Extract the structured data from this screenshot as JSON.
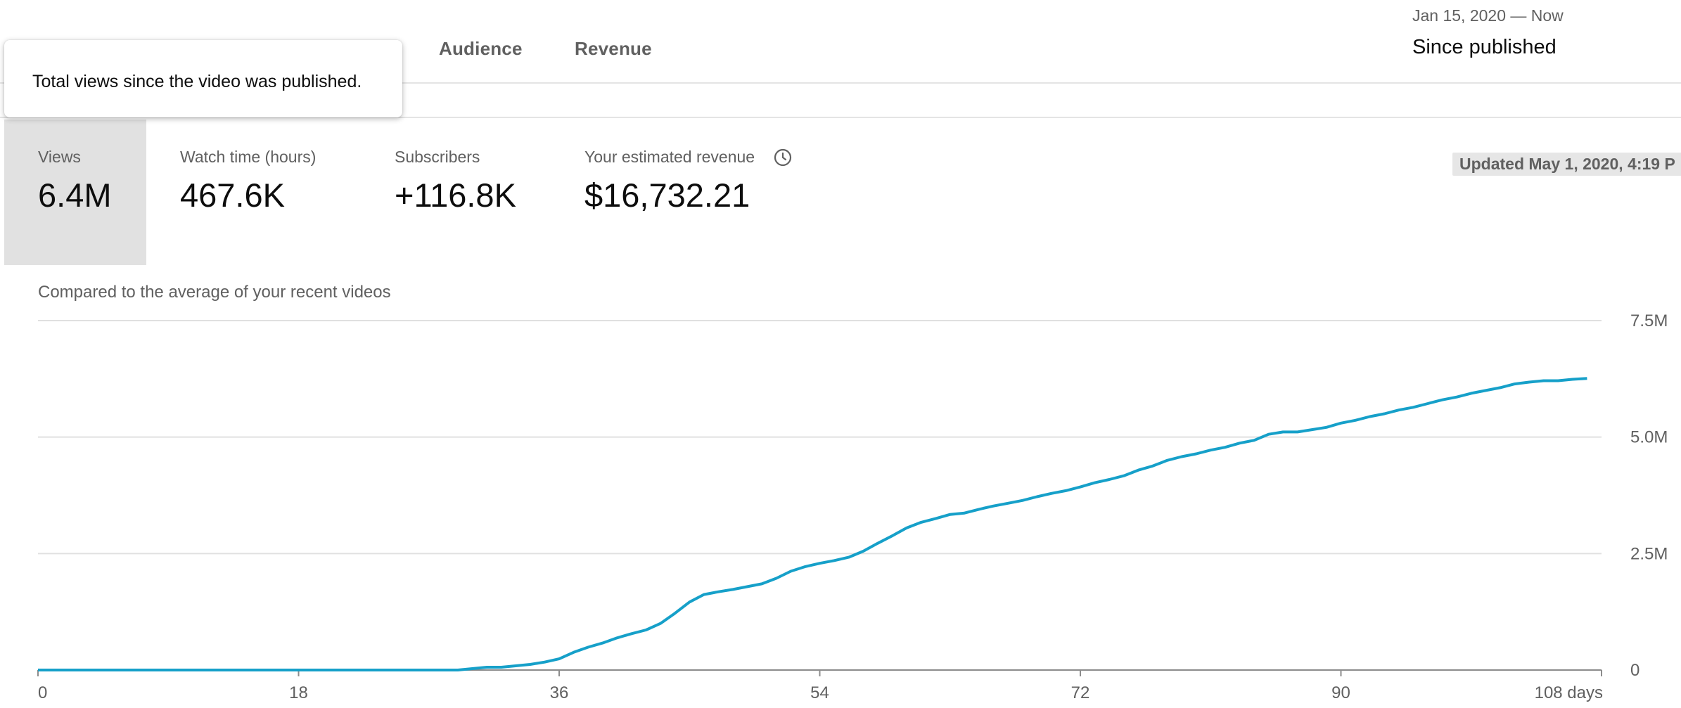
{
  "tabs": {
    "audience": "Audience",
    "revenue": "Revenue"
  },
  "date_range": {
    "range": "Jan 15, 2020 — Now",
    "label": "Since published"
  },
  "tooltip": {
    "text": "Total views since the video was published."
  },
  "metrics": [
    {
      "label": "Views",
      "value": "6.4M",
      "active": true
    },
    {
      "label": "Watch time (hours)",
      "value": "467.6K"
    },
    {
      "label": "Subscribers",
      "value": "+116.8K"
    },
    {
      "label": "Your estimated revenue",
      "value": "$16,732.21",
      "icon": "clock-icon"
    }
  ],
  "updated": "Updated May 1, 2020, 4:19 P",
  "compare_label": "Compared to the average of your recent videos",
  "colors": {
    "line": "#16a0c9",
    "grid": "#e0e0e0",
    "baseline": "#8c8c8c",
    "active_card": "#e1e1e1"
  },
  "chart_data": {
    "type": "line",
    "x_unit": "days",
    "xlim": [
      0,
      108
    ],
    "ylim": [
      0,
      7500000
    ],
    "x_ticks": [
      "0",
      "18",
      "36",
      "54",
      "72",
      "90",
      "108 days"
    ],
    "y_ticks": [
      "0",
      "2.5M",
      "5.0M",
      "7.5M"
    ],
    "series": [
      {
        "x": [
          0,
          29,
          30,
          31,
          32,
          33,
          34,
          35,
          36,
          37,
          38,
          39,
          40,
          41,
          42,
          43,
          44,
          45,
          46,
          47,
          48,
          49,
          50,
          51,
          52,
          53,
          54,
          55,
          56,
          57,
          58,
          59,
          60,
          61,
          62,
          63,
          64,
          65,
          66,
          67,
          68,
          69,
          70,
          71,
          72,
          73,
          74,
          75,
          76,
          77,
          78,
          79,
          80,
          81,
          82,
          83,
          84,
          85,
          86,
          87,
          88,
          89,
          90,
          91,
          92,
          93,
          94,
          95,
          96,
          97,
          98,
          99,
          100,
          101,
          102,
          103,
          104,
          105,
          106,
          107
        ],
        "y": [
          0,
          0,
          30000,
          60000,
          60000,
          90000,
          120000,
          170000,
          240000,
          380000,
          490000,
          580000,
          690000,
          780000,
          860000,
          1000000,
          1220000,
          1460000,
          1620000,
          1680000,
          1730000,
          1790000,
          1850000,
          1970000,
          2120000,
          2220000,
          2290000,
          2350000,
          2420000,
          2550000,
          2720000,
          2880000,
          3050000,
          3170000,
          3250000,
          3340000,
          3370000,
          3450000,
          3520000,
          3580000,
          3640000,
          3720000,
          3790000,
          3850000,
          3930000,
          4020000,
          4090000,
          4170000,
          4290000,
          4380000,
          4500000,
          4580000,
          4640000,
          4720000,
          4780000,
          4870000,
          4930000,
          5060000,
          5110000,
          5110000,
          5160000,
          5210000,
          5300000,
          5360000,
          5440000,
          5500000,
          5580000,
          5640000,
          5720000,
          5800000,
          5860000,
          5940000,
          6000000,
          6060000,
          6140000,
          6180000,
          6210000,
          6210000,
          6240000,
          6260000
        ]
      }
    ]
  }
}
